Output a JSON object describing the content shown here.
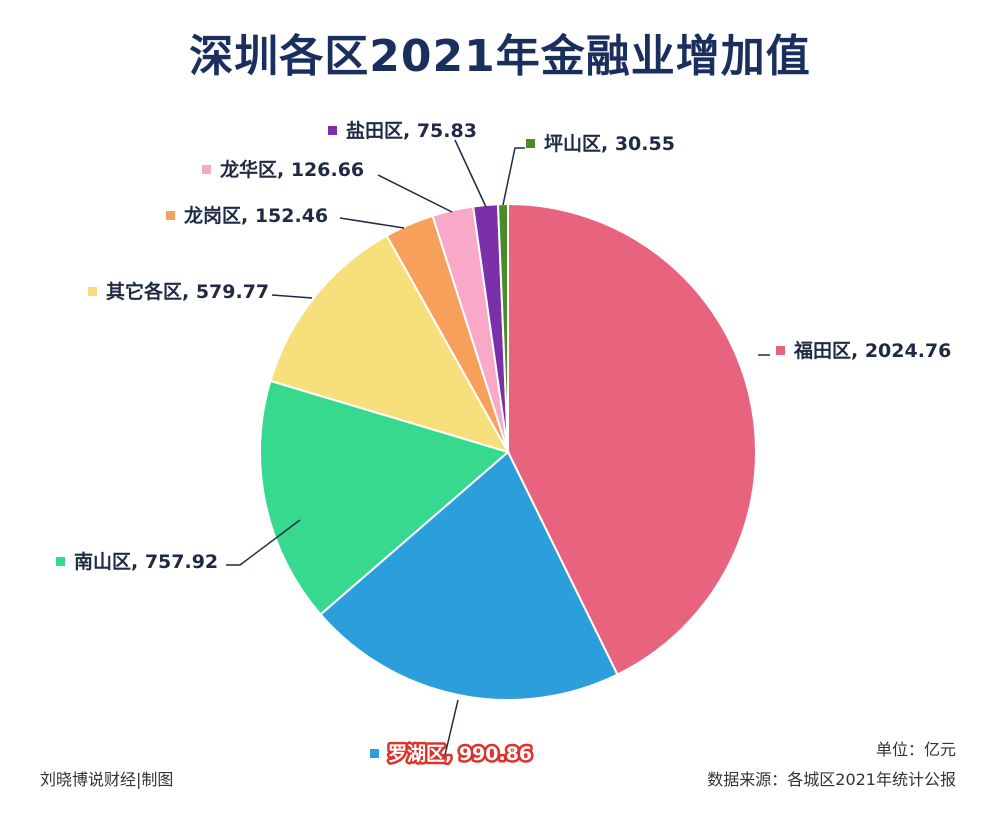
{
  "title": "深圳各区2021年金融业增加值",
  "unit_note": "单位：亿元",
  "source_note": "数据来源：各城区2021年统计公报",
  "maker_note": "刘晓博说财经|制图",
  "chart_data": {
    "type": "pie",
    "title": "深圳各区2021年金融业增加值",
    "unit": "亿元",
    "slices": [
      {
        "label": "福田区",
        "value": 2024.76,
        "value_text": "2024.76",
        "color": "#e8637d"
      },
      {
        "label": "罗湖区",
        "value": 990.86,
        "value_text": "990.86",
        "color": "#2a9fdc"
      },
      {
        "label": "南山区",
        "value": 757.92,
        "value_text": "757.92",
        "color": "#36d98e"
      },
      {
        "label": "其它各区",
        "value": 579.77,
        "value_text": "579.77",
        "color": "#f7e07c"
      },
      {
        "label": "龙岗区",
        "value": 152.46,
        "value_text": "152.46",
        "color": "#f7a05c"
      },
      {
        "label": "龙华区",
        "value": 126.66,
        "value_text": "126.66",
        "color": "#f9a8c8"
      },
      {
        "label": "盐田区",
        "value": 75.83,
        "value_text": "75.83",
        "color": "#7b2fa8"
      },
      {
        "label": "坪山区",
        "value": 30.55,
        "value_text": "30.55",
        "color": "#4a8c2a"
      }
    ],
    "highlight": "罗湖区",
    "highlight_color": "#e0302a"
  }
}
